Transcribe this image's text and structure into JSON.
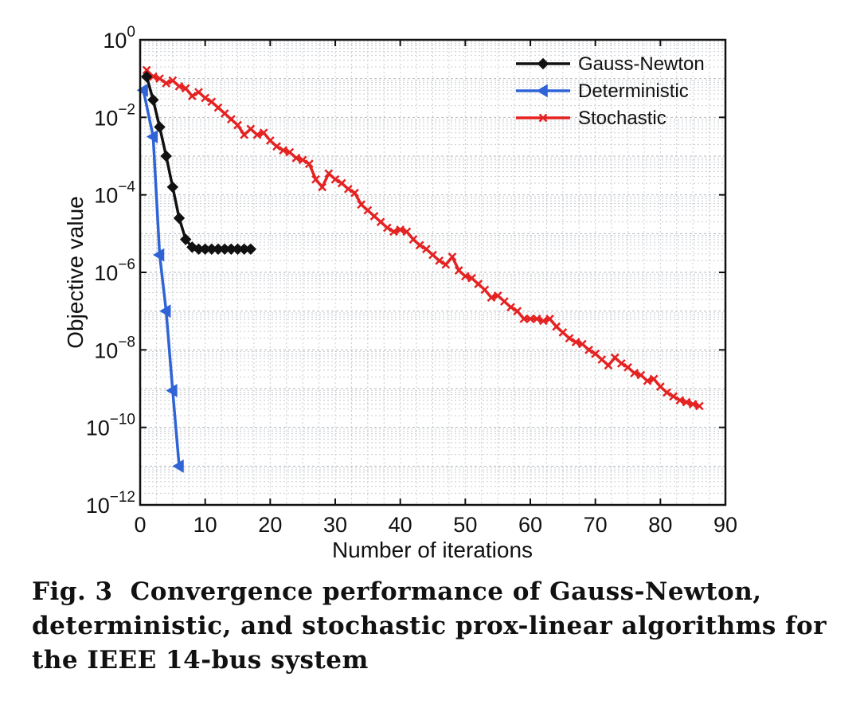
{
  "chart_data": {
    "type": "line",
    "xlabel": "Number of iterations",
    "ylabel": "Objective value",
    "xlim": [
      0,
      90
    ],
    "ylim_log10": [
      -12,
      0
    ],
    "y_scale": "log",
    "grid": true,
    "legend_position": "top-right",
    "x_ticks": [
      0,
      10,
      20,
      30,
      40,
      50,
      60,
      70,
      80,
      90
    ],
    "y_ticks": [
      {
        "base": "10",
        "exp": "0"
      },
      {
        "base": "10",
        "exp": "−2"
      },
      {
        "base": "10",
        "exp": "−4"
      },
      {
        "base": "10",
        "exp": "−6"
      },
      {
        "base": "10",
        "exp": "−8"
      },
      {
        "base": "10",
        "exp": "−10"
      },
      {
        "base": "10",
        "exp": "−12"
      }
    ],
    "series": [
      {
        "name": "Gauss-Newton",
        "color": "#111111",
        "marker": "diamond",
        "x": [
          1,
          2,
          3,
          4,
          5,
          6,
          7,
          8,
          9,
          10,
          11,
          12,
          13,
          14,
          15,
          16,
          17
        ],
        "log10_y": [
          -0.95,
          -1.55,
          -2.25,
          -3.0,
          -3.8,
          -4.6,
          -5.15,
          -5.35,
          -5.4,
          -5.4,
          -5.4,
          -5.4,
          -5.4,
          -5.4,
          -5.4,
          -5.4,
          -5.4
        ]
      },
      {
        "name": "Deterministic",
        "color": "#2f63d6",
        "marker": "triangle-left",
        "x": [
          0.5,
          2,
          3,
          4,
          5,
          6
        ],
        "log10_y": [
          -1.3,
          -2.5,
          -5.55,
          -7.0,
          -9.05,
          -11.0
        ]
      },
      {
        "name": "Stochastic",
        "color": "#e52222",
        "marker": "x",
        "x": [
          1,
          2,
          3,
          4,
          5,
          6,
          7,
          8,
          9,
          10,
          11,
          12,
          13,
          14,
          15,
          16,
          17,
          18,
          19,
          20,
          21,
          22,
          23,
          24,
          25,
          26,
          27,
          28,
          29,
          30,
          31,
          32,
          33,
          34,
          35,
          36,
          37,
          38,
          39,
          40,
          41,
          42,
          43,
          44,
          45,
          46,
          47,
          48,
          49,
          50,
          51,
          52,
          53,
          54,
          55,
          56,
          57,
          58,
          59,
          60,
          61,
          62,
          63,
          64,
          65,
          66,
          67,
          68,
          69,
          70,
          71,
          72,
          73,
          74,
          75,
          76,
          77,
          78,
          79,
          80,
          81,
          82,
          83,
          84,
          85,
          86
        ],
        "log10_y": [
          -0.78,
          -0.95,
          -1.0,
          -1.12,
          -1.05,
          -1.2,
          -1.25,
          -1.45,
          -1.35,
          -1.5,
          -1.6,
          -1.75,
          -1.9,
          -2.05,
          -2.2,
          -2.45,
          -2.3,
          -2.45,
          -2.4,
          -2.6,
          -2.75,
          -2.85,
          -2.9,
          -3.05,
          -3.1,
          -3.2,
          -3.6,
          -3.8,
          -3.45,
          -3.6,
          -3.7,
          -3.85,
          -3.95,
          -4.25,
          -4.4,
          -4.55,
          -4.7,
          -4.85,
          -4.95,
          -4.9,
          -4.95,
          -5.15,
          -5.3,
          -5.4,
          -5.55,
          -5.7,
          -5.8,
          -5.6,
          -5.95,
          -6.1,
          -6.15,
          -6.3,
          -6.45,
          -6.65,
          -6.6,
          -6.75,
          -6.9,
          -7.0,
          -7.2,
          -7.2,
          -7.2,
          -7.25,
          -7.2,
          -7.4,
          -7.55,
          -7.7,
          -7.8,
          -7.85,
          -8.0,
          -8.1,
          -8.25,
          -8.4,
          -8.2,
          -8.35,
          -8.45,
          -8.6,
          -8.65,
          -8.8,
          -8.75,
          -8.95,
          -9.1,
          -9.2,
          -9.3,
          -9.35,
          -9.4,
          -9.45
        ]
      }
    ]
  },
  "caption": {
    "fig_no": "Fig. 3",
    "text": "Convergence performance of Gauss-Newton, deterministic, and stochastic prox-linear algorithms for the IEEE 14-bus system"
  }
}
